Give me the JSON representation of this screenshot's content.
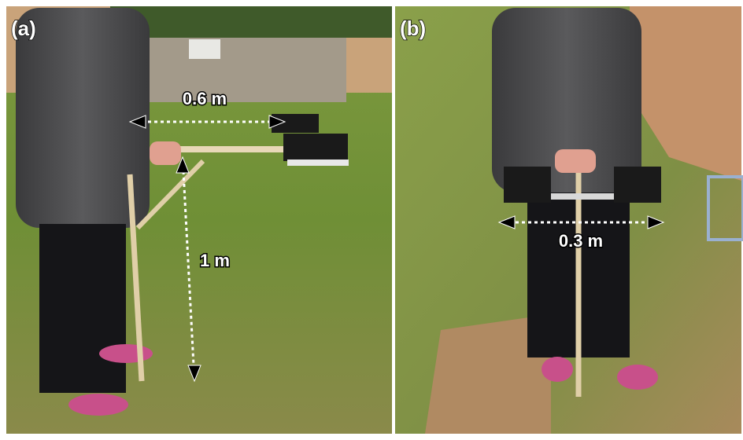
{
  "panels": [
    {
      "label": "(a)",
      "annotations": [
        "0.6 m",
        "1 m"
      ]
    },
    {
      "label": "(b)",
      "annotations": [
        "0.3 m"
      ]
    }
  ]
}
